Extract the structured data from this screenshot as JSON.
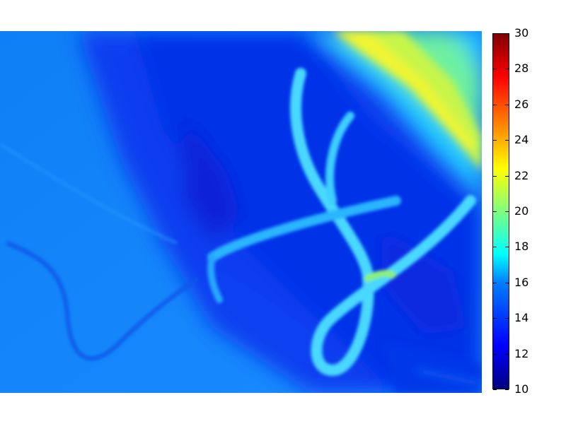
{
  "image": {
    "description_icon": "thermal-camera-image",
    "colormap": "jet",
    "value_range": [
      10,
      30
    ]
  },
  "colorbar": {
    "ticks": [
      "30",
      "28",
      "26",
      "24",
      "22",
      "20",
      "18",
      "16",
      "14",
      "12",
      "10"
    ],
    "min": 10,
    "max": 30
  }
}
